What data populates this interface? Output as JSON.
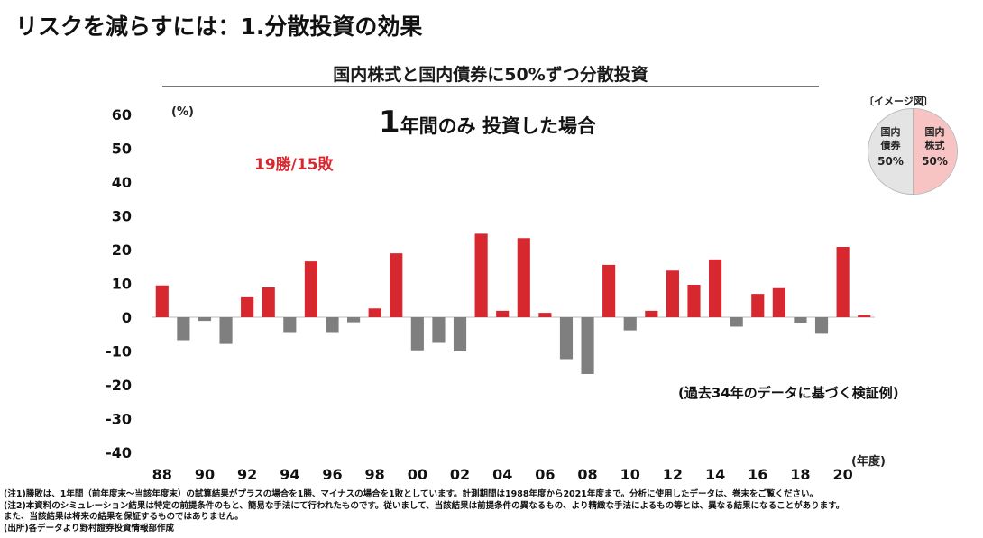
{
  "page": {
    "title": "リスクを減らすには：1.分散投資の効果",
    "subtitle": "国内株式と国内債券に50%ずつ分散投資",
    "heading_big": "1",
    "heading_rest": "年間のみ 投資した場合",
    "win_loss": "19勝/15敗",
    "note_basis": "(過去34年のデータに基づく検証例)"
  },
  "legend": {
    "caption": "〔イメージ図〕",
    "left_label": "国内\n債券",
    "left_pct": "50%",
    "right_label": "国内\n株式",
    "right_pct": "50%",
    "colors": {
      "left": "#e4e4e4",
      "right": "#f7c3c3"
    }
  },
  "chart_data": {
    "type": "bar",
    "ylabel": "(%)",
    "xlabel": "(年度)",
    "ylim": [
      -40,
      60
    ],
    "yticks": [
      60,
      50,
      40,
      30,
      20,
      10,
      0,
      -10,
      -20,
      -30,
      -40
    ],
    "x": [
      1988,
      1989,
      1990,
      1991,
      1992,
      1993,
      1994,
      1995,
      1996,
      1997,
      1998,
      1999,
      2000,
      2001,
      2002,
      2003,
      2004,
      2005,
      2006,
      2007,
      2008,
      2009,
      2010,
      2011,
      2012,
      2013,
      2014,
      2015,
      2016,
      2017,
      2018,
      2019,
      2020,
      2021
    ],
    "xtick_labels": [
      "88",
      "90",
      "92",
      "94",
      "96",
      "98",
      "00",
      "02",
      "04",
      "06",
      "08",
      "10",
      "12",
      "14",
      "16",
      "18",
      "20"
    ],
    "values": [
      9.4,
      -6.8,
      -1.1,
      -7.9,
      5.9,
      8.8,
      -4.4,
      16.5,
      -4.4,
      -1.5,
      2.6,
      18.9,
      -9.8,
      -7.6,
      -10.1,
      24.7,
      1.9,
      23.4,
      1.3,
      -12.4,
      -16.8,
      15.5,
      -3.9,
      1.9,
      13.8,
      9.6,
      17.1,
      -2.8,
      6.9,
      8.6,
      -1.6,
      -4.9,
      20.8,
      0.6
    ],
    "colors": {
      "positive": "#d7282f",
      "negative": "#7f7f7f"
    }
  },
  "footnotes": [
    "(注1)勝敗は、1年間（前年度末〜当該年度末）の試算結果がプラスの場合を1勝、マイナスの場合を1敗としています。計測期間は1988年度から2021年度まで。分析に使用したデータは、巻末をご覧ください。",
    "(注2)本資料のシミュレーション結果は特定の前提条件のもと、簡易な手法にて行われたものです。従いまして、当該結果は前提条件の異なるもの、より精緻な手法によるもの等とは、異なる結果になることがあります。",
    "また、当該結果は将来の結果を保証するものではありません。",
    "(出所)各データより野村證券投資情報部作成"
  ]
}
